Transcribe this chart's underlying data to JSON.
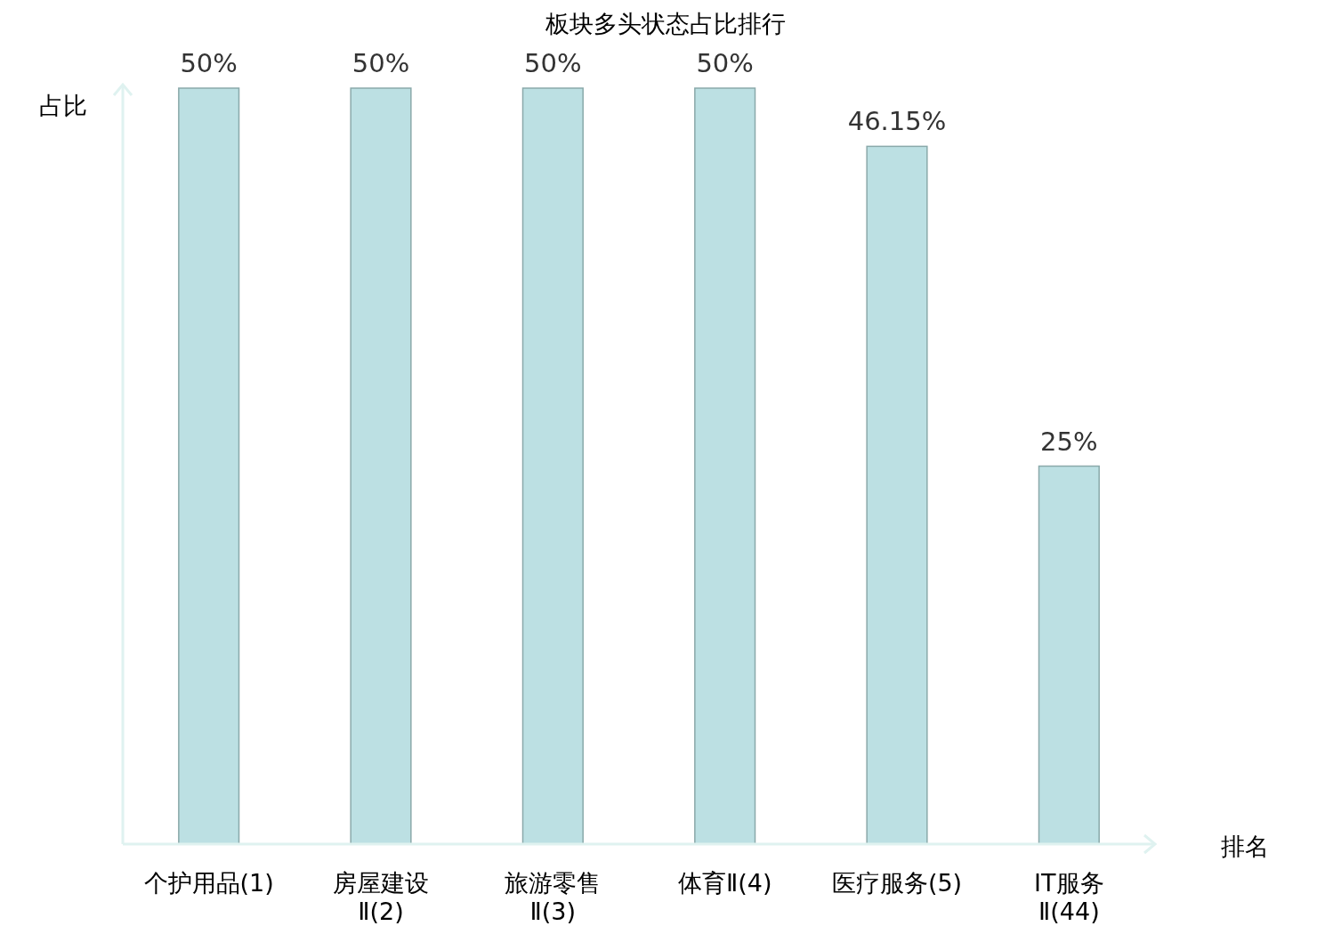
{
  "chart_data": {
    "type": "bar",
    "title": "板块多头状态占比排行",
    "xlabel": "排名",
    "ylabel": "占比",
    "categories": [
      "个护用品(1)",
      "房屋建设Ⅱ(2)",
      "旅游零售Ⅱ(3)",
      "体育Ⅱ(4)",
      "医疗服务(5)",
      "IT服务Ⅱ(44)"
    ],
    "values": [
      50,
      50,
      50,
      50,
      46.15,
      25
    ],
    "value_labels": [
      "50%",
      "50%",
      "50%",
      "50%",
      "46.15%",
      "25%"
    ],
    "color": "#bce0e3",
    "ylim": [
      0,
      50
    ]
  }
}
